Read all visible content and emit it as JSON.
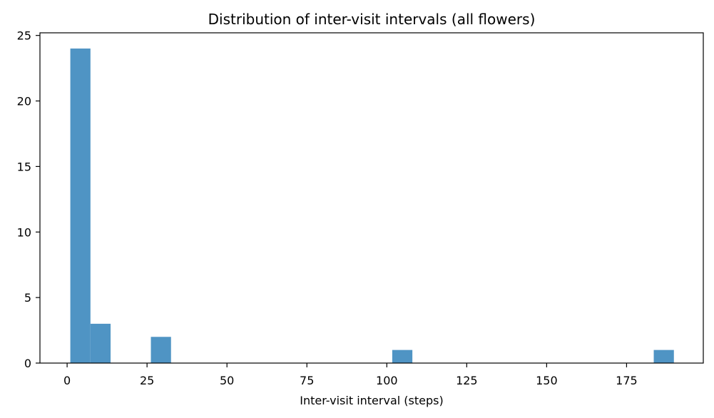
{
  "chart_data": {
    "type": "bar",
    "title": "Distribution of inter-visit intervals (all flowers)",
    "xlabel": "Inter-visit interval (steps)",
    "ylabel": "",
    "xlim": [
      -8.5,
      199
    ],
    "ylim": [
      0,
      25.2
    ],
    "xticks": [
      0,
      25,
      50,
      75,
      100,
      125,
      150,
      175
    ],
    "yticks": [
      0,
      5,
      10,
      15,
      20,
      25
    ],
    "bin_width": 6.3,
    "bins": [
      {
        "start": 1.0,
        "count": 24
      },
      {
        "start": 7.3,
        "count": 3
      },
      {
        "start": 26.2,
        "count": 2
      },
      {
        "start": 101.7,
        "count": 1
      },
      {
        "start": 183.5,
        "count": 1
      }
    ],
    "colors": {
      "bar": "#4f94c4"
    },
    "grid": false,
    "legend": "none"
  }
}
